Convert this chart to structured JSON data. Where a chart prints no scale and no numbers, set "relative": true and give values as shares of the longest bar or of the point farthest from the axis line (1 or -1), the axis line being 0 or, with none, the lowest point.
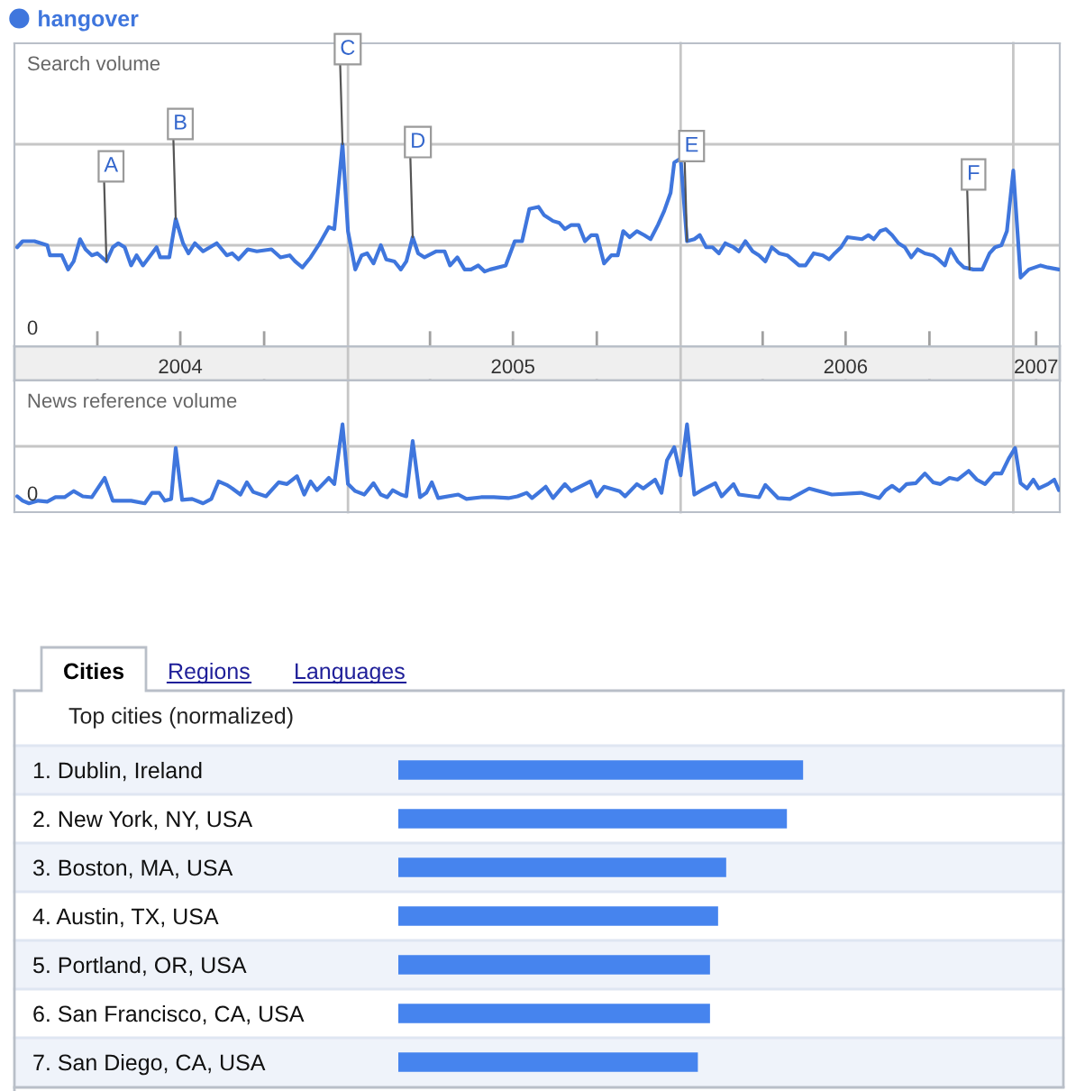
{
  "chart_data": [
    {
      "type": "line",
      "title": "Search volume",
      "legend": "top left",
      "relative": true,
      "tick_labels": "x",
      "line_style": "solid",
      "xlim": [
        "2004-01-01",
        "2007-02-21"
      ],
      "xticks": [
        {
          "value": "2004-04-01",
          "label": null
        },
        {
          "value": "2004-07-01",
          "label": "2004"
        },
        {
          "value": "2004-10-01",
          "label": null
        },
        {
          "value": "2005-04-01",
          "label": null
        },
        {
          "value": "2005-07-01",
          "label": "2005"
        },
        {
          "value": "2005-10-01",
          "label": null
        },
        {
          "value": "2006-04-01",
          "label": null
        },
        {
          "value": "2006-07-01",
          "label": "2006"
        },
        {
          "value": "2006-10-01",
          "label": null
        },
        {
          "value": "2007-01-26",
          "label": "2007"
        }
      ],
      "ref_lines": [
        {
          "axis": "x",
          "value": "2005-01-01"
        },
        {
          "axis": "x",
          "value": "2006-01-01"
        },
        {
          "axis": "x",
          "value": "2007-01-01"
        },
        {
          "axis": "y",
          "value": 0.5
        },
        {
          "axis": "y",
          "value": 1
        }
      ],
      "annotations": [
        "0",
        {
          "text": "A",
          "x": "2004-04-11",
          "y": 0.42
        },
        {
          "text": "B",
          "x": "2004-06-26",
          "y": 0.63
        },
        {
          "text": "C",
          "x": "2004-12-26",
          "y": 1
        },
        {
          "text": "D",
          "x": "2005-03-13",
          "y": 0.54
        },
        {
          "text": "E",
          "x": "2006-01-08",
          "y": 0.52
        },
        {
          "text": "F",
          "x": "2006-11-14",
          "y": 0.38
        }
      ],
      "series": [
        {
          "name": "hangover",
          "color": "#3f76dd",
          "x": [
            "2004-01-04",
            "2004-01-10",
            "2004-01-23",
            "2004-02-06",
            "2004-02-09",
            "2004-02-22",
            "2004-02-29",
            "2004-03-06",
            "2004-03-13",
            "2004-03-19",
            "2004-03-26",
            "2004-04-01",
            "2004-04-11",
            "2004-04-18",
            "2004-04-24",
            "2004-05-01",
            "2004-05-08",
            "2004-05-14",
            "2004-05-21",
            "2004-06-05",
            "2004-06-09",
            "2004-06-19",
            "2004-06-26",
            "2004-07-04",
            "2004-07-10",
            "2004-07-17",
            "2004-07-26",
            "2004-08-10",
            "2004-08-21",
            "2004-08-27",
            "2004-09-03",
            "2004-09-13",
            "2004-09-23",
            "2004-10-09",
            "2004-10-19",
            "2004-10-29",
            "2004-11-04",
            "2004-11-12",
            "2004-11-21",
            "2004-12-01",
            "2004-12-11",
            "2004-12-17",
            "2004-12-26",
            "2005-01-01",
            "2005-01-09",
            "2005-01-16",
            "2005-01-22",
            "2005-01-29",
            "2005-02-06",
            "2005-02-12",
            "2005-02-21",
            "2005-02-28",
            "2005-03-06",
            "2005-03-13",
            "2005-03-19",
            "2005-03-26",
            "2005-04-08",
            "2005-04-17",
            "2005-04-23",
            "2005-05-01",
            "2005-05-09",
            "2005-05-16",
            "2005-05-24",
            "2005-05-31",
            "2005-06-06",
            "2005-06-23",
            "2005-07-03",
            "2005-07-11",
            "2005-07-19",
            "2005-07-29",
            "2005-08-04",
            "2005-08-14",
            "2005-08-21",
            "2005-08-27",
            "2005-09-03",
            "2005-09-11",
            "2005-09-18",
            "2005-09-25",
            "2005-10-01",
            "2005-10-09",
            "2005-10-17",
            "2005-10-24",
            "2005-10-30",
            "2005-11-06",
            "2005-11-14",
            "2005-11-22",
            "2005-11-29",
            "2005-12-07",
            "2005-12-14",
            "2005-12-21",
            "2005-12-25",
            "2006-01-01",
            "2006-01-08",
            "2006-01-16",
            "2006-01-22",
            "2006-01-29",
            "2006-02-05",
            "2006-02-12",
            "2006-02-19",
            "2006-02-28",
            "2006-03-06",
            "2006-03-13",
            "2006-03-21",
            "2006-03-28",
            "2006-04-04",
            "2006-04-11",
            "2006-04-19",
            "2006-04-28",
            "2006-05-11",
            "2006-05-18",
            "2006-05-27",
            "2006-06-06",
            "2006-06-13",
            "2006-06-19",
            "2006-06-26",
            "2006-07-03",
            "2006-07-19",
            "2006-07-26",
            "2006-08-01",
            "2006-08-08",
            "2006-08-14",
            "2006-08-21",
            "2006-08-28",
            "2006-09-04",
            "2006-09-11",
            "2006-09-18",
            "2006-09-26",
            "2006-10-05",
            "2006-10-11",
            "2006-10-18",
            "2006-10-24",
            "2006-11-01",
            "2006-11-08",
            "2006-11-18",
            "2006-11-28",
            "2006-12-06",
            "2006-12-12",
            "2006-12-19",
            "2006-12-25",
            "2007-01-01",
            "2007-01-09",
            "2007-01-18",
            "2007-01-31",
            "2007-02-08",
            "2007-02-20"
          ],
          "values": [
            0.49,
            0.52,
            0.52,
            0.5,
            0.45,
            0.45,
            0.38,
            0.42,
            0.53,
            0.48,
            0.45,
            0.46,
            0.42,
            0.49,
            0.51,
            0.49,
            0.4,
            0.45,
            0.4,
            0.49,
            0.44,
            0.44,
            0.63,
            0.51,
            0.46,
            0.51,
            0.47,
            0.51,
            0.45,
            0.46,
            0.43,
            0.48,
            0.47,
            0.48,
            0.44,
            0.45,
            0.42,
            0.39,
            0.44,
            0.51,
            0.59,
            0.58,
            1,
            0.57,
            0.38,
            0.45,
            0.46,
            0.41,
            0.5,
            0.43,
            0.42,
            0.38,
            0.42,
            0.54,
            0.46,
            0.44,
            0.47,
            0.47,
            0.4,
            0.44,
            0.38,
            0.38,
            0.4,
            0.37,
            0.38,
            0.4,
            0.52,
            0.52,
            0.68,
            0.69,
            0.65,
            0.62,
            0.61,
            0.58,
            0.6,
            0.6,
            0.52,
            0.55,
            0.55,
            0.41,
            0.45,
            0.45,
            0.57,
            0.54,
            0.57,
            0.55,
            0.53,
            0.6,
            0.67,
            0.76,
            0.91,
            0.93,
            0.52,
            0.53,
            0.55,
            0.49,
            0.49,
            0.46,
            0.51,
            0.49,
            0.47,
            0.52,
            0.47,
            0.45,
            0.42,
            0.49,
            0.46,
            0.45,
            0.4,
            0.4,
            0.46,
            0.45,
            0.43,
            0.46,
            0.49,
            0.54,
            0.53,
            0.55,
            0.53,
            0.57,
            0.58,
            0.55,
            0.51,
            0.49,
            0.44,
            0.48,
            0.46,
            0.45,
            0.43,
            0.4,
            0.48,
            0.42,
            0.39,
            0.38,
            0.38,
            0.46,
            0.49,
            0.5,
            0.57,
            0.87,
            0.34,
            0.38,
            0.4,
            0.39,
            0.38
          ]
        }
      ]
    },
    {
      "type": "line",
      "title": "News reference volume",
      "relative": true,
      "tick_labels": false,
      "line_style": "solid",
      "xlim": [
        "2004-01-01",
        "2007-02-21"
      ],
      "ref_lines": [
        {
          "axis": "x",
          "value": "2005-01-01"
        },
        {
          "axis": "x",
          "value": "2006-01-01"
        },
        {
          "axis": "x",
          "value": "2007-01-01"
        },
        {
          "axis": "y",
          "value": 0.75
        }
      ],
      "annotations": [
        "0"
      ],
      "series": [
        {
          "color": "#3f76dd",
          "x": [
            "2004-01-04",
            "2004-01-10",
            "2004-01-17",
            "2004-01-27",
            "2004-02-06",
            "2004-02-15",
            "2004-02-25",
            "2004-03-06",
            "2004-03-16",
            "2004-03-26",
            "2004-04-09",
            "2004-04-18",
            "2004-05-08",
            "2004-05-23",
            "2004-05-31",
            "2004-06-08",
            "2004-06-14",
            "2004-06-21",
            "2004-06-26",
            "2004-07-03",
            "2004-07-14",
            "2004-07-26",
            "2004-08-04",
            "2004-08-12",
            "2004-08-21",
            "2004-08-27",
            "2004-09-05",
            "2004-09-12",
            "2004-09-19",
            "2004-10-03",
            "2004-10-17",
            "2004-10-26",
            "2004-11-06",
            "2004-11-14",
            "2004-11-21",
            "2004-11-28",
            "2004-12-11",
            "2004-12-17",
            "2004-12-26",
            "2005-01-01",
            "2005-01-09",
            "2005-01-19",
            "2005-01-29",
            "2005-02-06",
            "2005-02-13",
            "2005-02-19",
            "2005-02-28",
            "2005-03-06",
            "2005-03-13",
            "2005-03-21",
            "2005-03-28",
            "2005-04-03",
            "2005-04-10",
            "2005-05-02",
            "2005-05-11",
            "2005-05-27",
            "2005-06-10",
            "2005-06-26",
            "2005-07-06",
            "2005-07-16",
            "2005-07-22",
            "2005-07-29",
            "2005-08-06",
            "2005-08-14",
            "2005-08-27",
            "2005-09-03",
            "2005-09-24",
            "2005-10-01",
            "2005-10-09",
            "2005-10-26",
            "2005-11-01",
            "2005-11-14",
            "2005-11-21",
            "2005-12-04",
            "2005-12-11",
            "2005-12-17",
            "2005-12-25",
            "2006-01-01",
            "2006-01-08",
            "2006-01-16",
            "2006-01-24",
            "2006-02-08",
            "2006-02-15",
            "2006-02-28",
            "2006-03-06",
            "2006-03-28",
            "2006-04-04",
            "2006-04-18",
            "2006-05-01",
            "2006-05-22",
            "2006-06-16",
            "2006-07-18",
            "2006-08-07",
            "2006-08-14",
            "2006-08-21",
            "2006-08-29",
            "2006-09-06",
            "2006-09-16",
            "2006-09-26",
            "2006-10-05",
            "2006-10-13",
            "2006-10-23",
            "2006-11-01",
            "2006-11-13",
            "2006-11-22",
            "2006-12-01",
            "2006-12-11",
            "2006-12-19",
            "2006-12-27",
            "2007-01-03",
            "2007-01-09",
            "2007-01-16",
            "2007-01-23",
            "2007-01-29",
            "2007-02-08",
            "2007-02-15",
            "2007-02-20"
          ],
          "values": [
            0.18,
            0.13,
            0.1,
            0.13,
            0.12,
            0.17,
            0.17,
            0.24,
            0.18,
            0.17,
            0.39,
            0.13,
            0.13,
            0.1,
            0.22,
            0.22,
            0.13,
            0.15,
            0.73,
            0.14,
            0.15,
            0.1,
            0.15,
            0.35,
            0.31,
            0.27,
            0.2,
            0.34,
            0.23,
            0.18,
            0.34,
            0.32,
            0.41,
            0.2,
            0.35,
            0.25,
            0.39,
            0.32,
            1,
            0.32,
            0.24,
            0.2,
            0.33,
            0.2,
            0.17,
            0.25,
            0.2,
            0.18,
            0.81,
            0.17,
            0.22,
            0.34,
            0.16,
            0.2,
            0.15,
            0.17,
            0.17,
            0.16,
            0.18,
            0.22,
            0.16,
            0.22,
            0.29,
            0.16,
            0.32,
            0.24,
            0.35,
            0.18,
            0.29,
            0.24,
            0.18,
            0.32,
            0.27,
            0.37,
            0.22,
            0.59,
            0.74,
            0.42,
            1,
            0.2,
            0.25,
            0.33,
            0.18,
            0.32,
            0.2,
            0.17,
            0.31,
            0.16,
            0.15,
            0.27,
            0.2,
            0.22,
            0.16,
            0.25,
            0.3,
            0.24,
            0.32,
            0.33,
            0.44,
            0.34,
            0.32,
            0.39,
            0.37,
            0.47,
            0.37,
            0.32,
            0.44,
            0.44,
            0.61,
            0.73,
            0.33,
            0.27,
            0.37,
            0.27,
            0.32,
            0.37,
            0.25
          ]
        }
      ]
    },
    {
      "type": "bar",
      "orientation": "horizontal",
      "relative": true,
      "title": "Top cities (normalized)",
      "annotations": [
        "Cities",
        "Regions",
        "Languages"
      ],
      "categories": [
        "1. Dublin, Ireland",
        "2. New York, NY, USA",
        "3. Boston, MA, USA",
        "4. Austin, TX, USA",
        "5. Portland, OR, USA",
        "6. San Francisco, CA, USA",
        "7. San Diego, CA, USA"
      ],
      "values": [
        1,
        0.96,
        0.81,
        0.79,
        0.77,
        0.77,
        0.74
      ],
      "color": "#4684ee"
    }
  ]
}
